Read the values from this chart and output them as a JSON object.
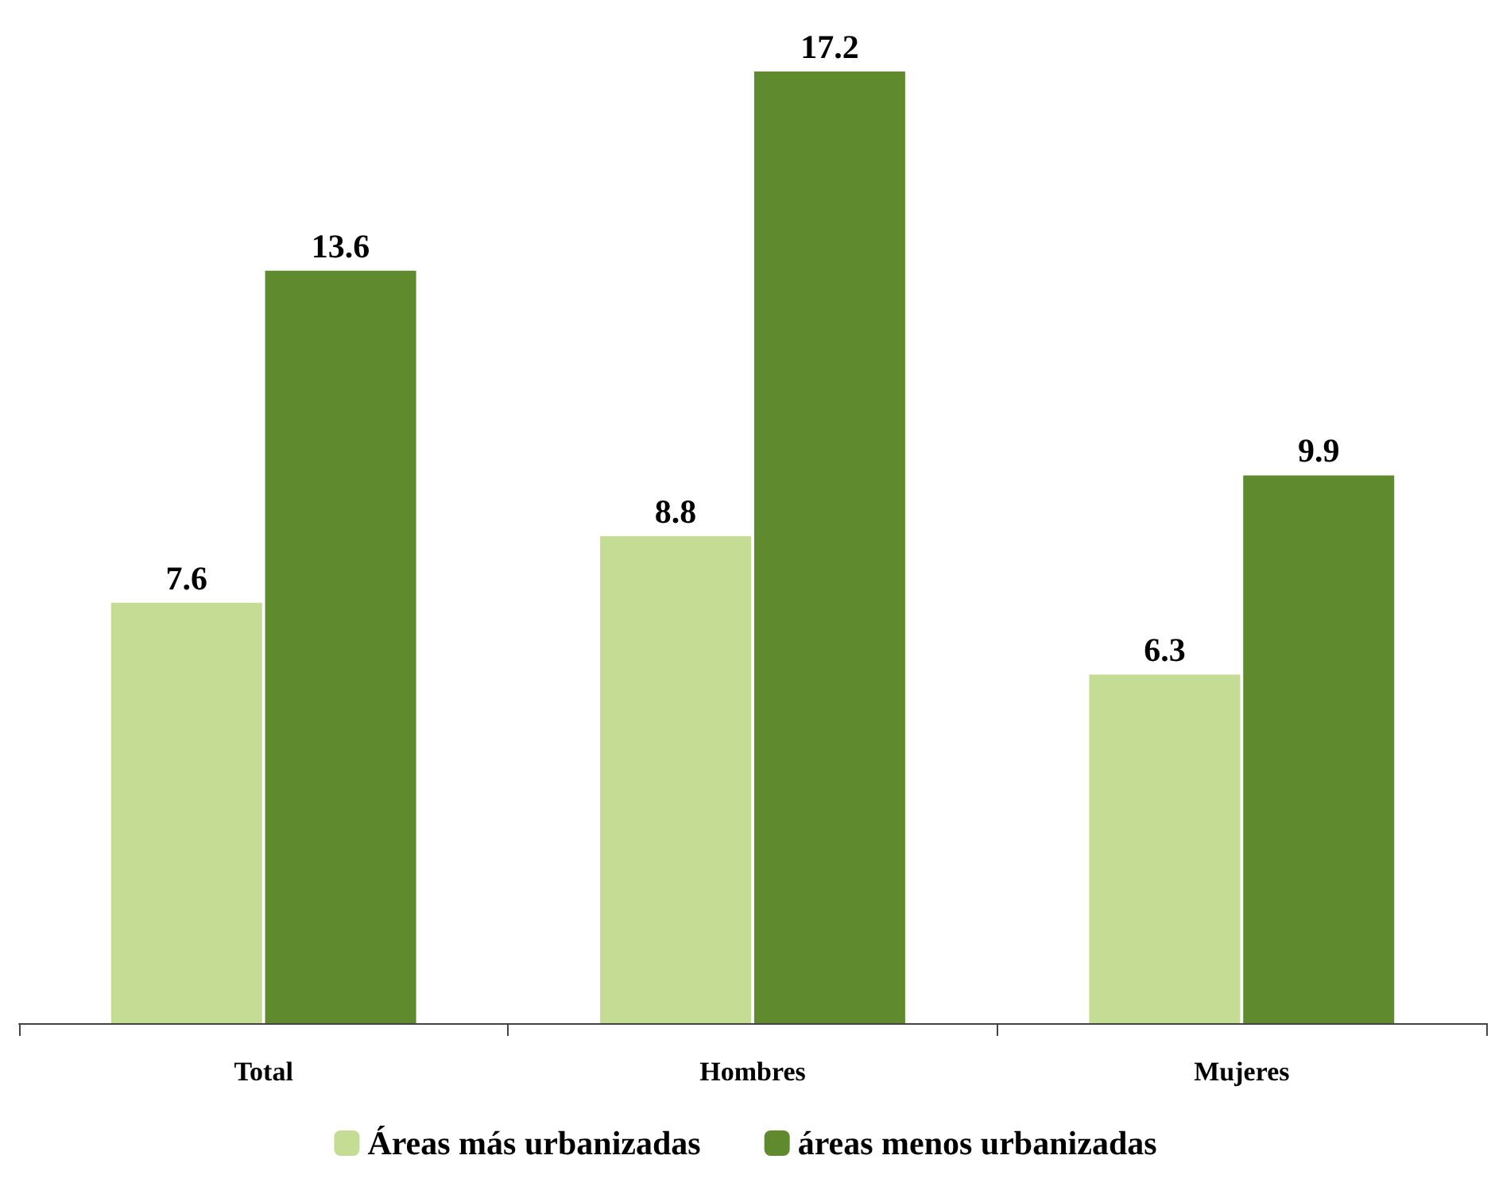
{
  "chart_data": {
    "type": "bar",
    "categories": [
      "Total",
      "Hombres",
      "Mujeres"
    ],
    "series": [
      {
        "name": "Áreas más urbanizadas",
        "color": "#c5dc94",
        "values": [
          7.6,
          8.8,
          6.3
        ]
      },
      {
        "name": "áreas menos urbanizadas",
        "color": "#5f8a2e",
        "values": [
          13.6,
          17.2,
          9.9
        ]
      }
    ],
    "data_labels": true,
    "legend": "bottom"
  }
}
